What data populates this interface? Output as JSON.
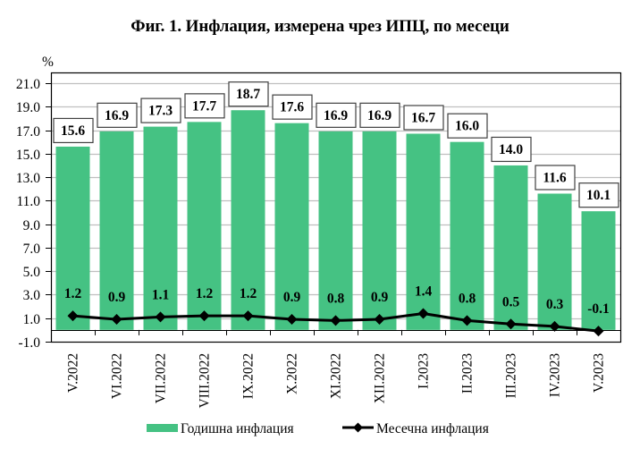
{
  "title": "Фиг. 1. Инфлация, измерена чрез ИПЦ, по месеци",
  "y_unit": "%",
  "colors": {
    "bar": "#45C283",
    "line": "#000000",
    "grid": "#BFBFBF",
    "axis": "#000000"
  },
  "legend": {
    "items": [
      {
        "label": "Годишна инфлация",
        "type": "bar"
      },
      {
        "label": "Месечна инфлация",
        "type": "line"
      }
    ]
  },
  "chart_data": {
    "type": "bar",
    "title": "Фиг. 1. Инфлация, измерена чрез ИПЦ, по месеци",
    "xlabel": "",
    "ylabel": "%",
    "ylim": [
      -1.0,
      21.0
    ],
    "yticks": [
      "21.0",
      "19.0",
      "17.0",
      "15.0",
      "13.0",
      "11.0",
      "9.0",
      "7.0",
      "5.0",
      "3.0",
      "1.0",
      "-1.0"
    ],
    "grid": true,
    "legend_position": "bottom",
    "categories": [
      "V.2022",
      "VI.2022",
      "VII.2022",
      "VIII.2022",
      "IX.2022",
      "X.2022",
      "XI.2022",
      "XII.2022",
      "I.2023",
      "II.2023",
      "III.2023",
      "IV.2023",
      "V.2023"
    ],
    "series": [
      {
        "name": "Годишна инфлация",
        "type": "bar",
        "values": [
          15.6,
          16.9,
          17.3,
          17.7,
          18.7,
          17.6,
          16.9,
          16.9,
          16.7,
          16.0,
          14.0,
          11.6,
          10.1
        ],
        "labels": [
          "15.6",
          "16.9",
          "17.3",
          "17.7",
          "18.7",
          "17.6",
          "16.9",
          "16.9",
          "16.7",
          "16.0",
          "14.0",
          "11.6",
          "10.1"
        ]
      },
      {
        "name": "Месечна инфлация",
        "type": "line",
        "marker": "diamond",
        "values": [
          1.2,
          0.9,
          1.1,
          1.2,
          1.2,
          0.9,
          0.8,
          0.9,
          1.4,
          0.8,
          0.5,
          0.3,
          -0.1
        ],
        "labels": [
          "1.2",
          "0.9",
          "1.1",
          "1.2",
          "1.2",
          "0.9",
          "0.8",
          "0.9",
          "1.4",
          "0.8",
          "0.5",
          "0.3",
          "-0.1"
        ]
      }
    ]
  }
}
